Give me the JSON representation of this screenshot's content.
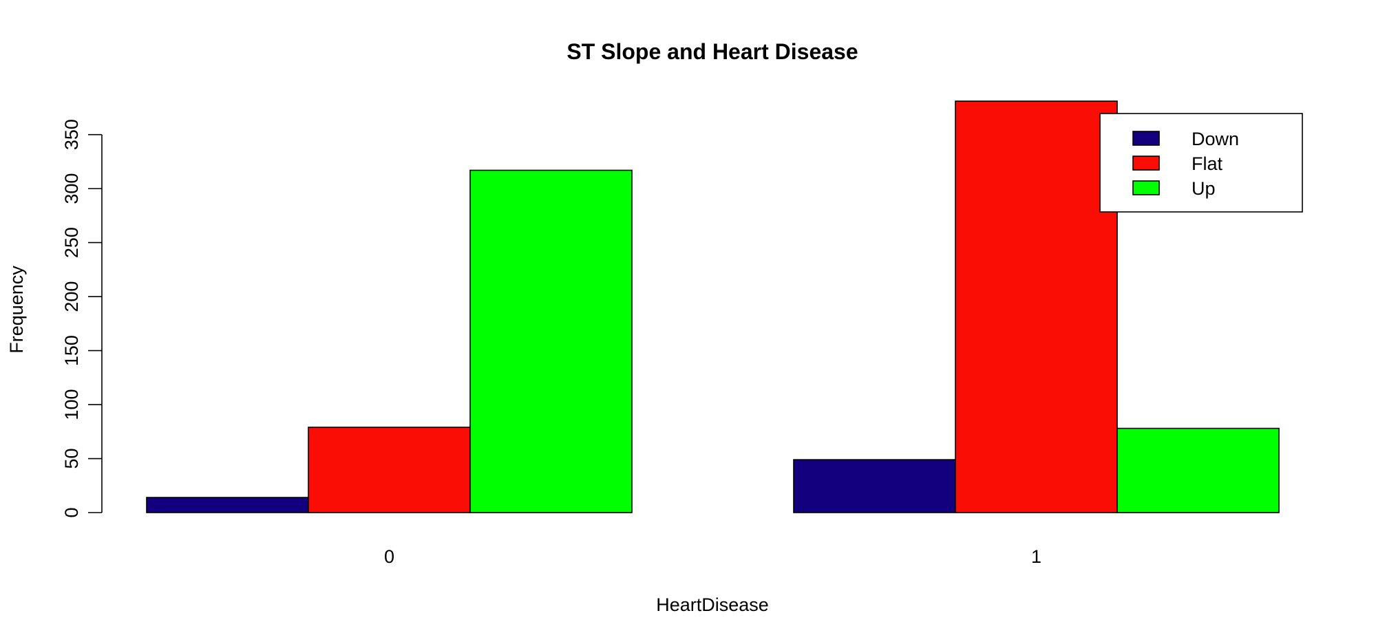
{
  "chart_data": {
    "type": "bar",
    "title": "ST Slope and Heart Disease",
    "xlabel": "HeartDisease",
    "ylabel": "Frequency",
    "categories": [
      "0",
      "1"
    ],
    "series": [
      {
        "name": "Down",
        "color": "#12007f",
        "values": [
          14,
          49
        ]
      },
      {
        "name": "Flat",
        "color": "#fa0d05",
        "values": [
          79,
          381
        ]
      },
      {
        "name": "Up",
        "color": "#00ff00",
        "values": [
          317,
          78
        ]
      }
    ],
    "ylim": [
      0,
      381
    ],
    "yticks": [
      0,
      50,
      100,
      150,
      200,
      250,
      300,
      350
    ],
    "ytick_labels": [
      "0",
      "50",
      "100",
      "150",
      "200",
      "250",
      "300",
      "350"
    ],
    "legend": {
      "position": "top-right",
      "entries": [
        "Down",
        "Flat",
        "Up"
      ]
    },
    "grid": false
  }
}
